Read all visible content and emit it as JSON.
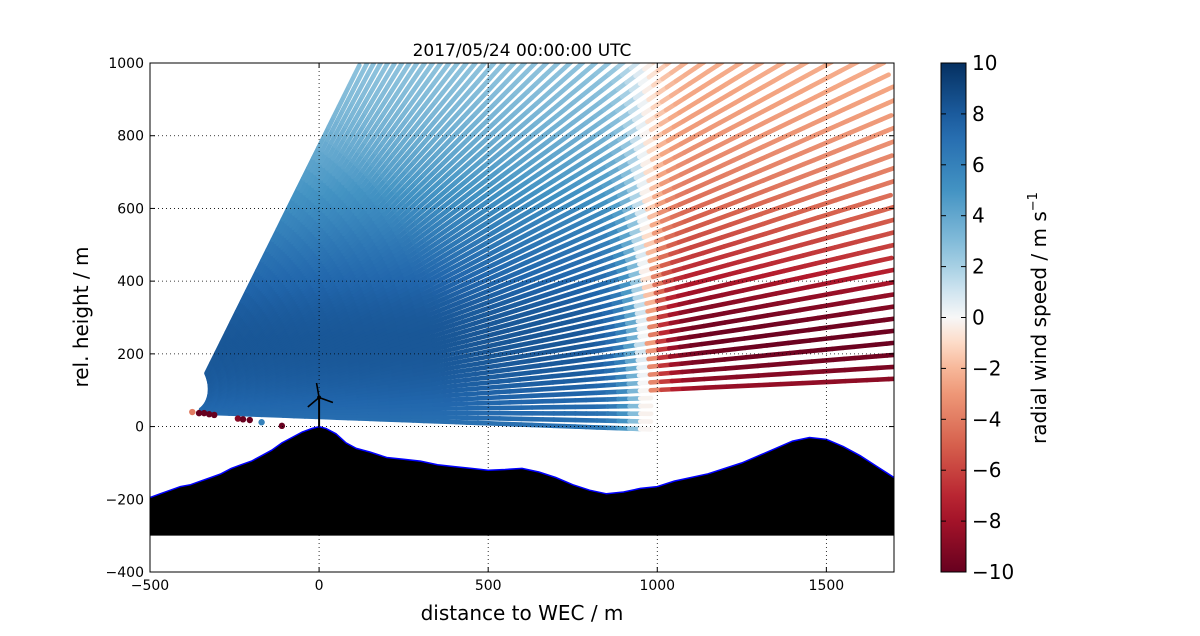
{
  "chart_data": {
    "type": "scatter",
    "title": "2017/05/24 00:00:00 UTC",
    "xlabel": "distance to WEC / m",
    "ylabel": "rel. height / m",
    "xlim": [
      -500,
      1700
    ],
    "ylim": [
      -400,
      1000
    ],
    "xticks": [
      "−500",
      "0",
      "500",
      "1000",
      "1500"
    ],
    "yticks": [
      "−400",
      "−200",
      "0",
      "200",
      "400",
      "600",
      "800",
      "1000"
    ],
    "grid": true,
    "colorbar": {
      "label": "radial wind speed / m s",
      "label_sup": "−1",
      "range": [
        -10,
        10
      ],
      "ticks": [
        "−10",
        "−8",
        "−6",
        "−4",
        "−2",
        "0",
        "2",
        "4",
        "6",
        "8",
        "10"
      ],
      "colormap": "RdBu"
    },
    "scan": {
      "origin": [
        -390,
        40
      ],
      "elevation_deg_range": [
        -2,
        62
      ],
      "max_range_m": 2300
    },
    "terrain_profile": {
      "x": [
        -500,
        -470,
        -440,
        -410,
        -380,
        -350,
        -320,
        -290,
        -260,
        -230,
        -200,
        -170,
        -140,
        -110,
        -80,
        -50,
        -20,
        0,
        20,
        50,
        80,
        110,
        150,
        200,
        250,
        300,
        350,
        400,
        450,
        500,
        550,
        600,
        650,
        700,
        750,
        800,
        850,
        900,
        950,
        1000,
        1050,
        1100,
        1150,
        1200,
        1250,
        1300,
        1350,
        1400,
        1450,
        1500,
        1550,
        1600,
        1650,
        1700
      ],
      "y": [
        -195,
        -185,
        -175,
        -165,
        -160,
        -150,
        -140,
        -130,
        -115,
        -105,
        -95,
        -80,
        -65,
        -45,
        -30,
        -15,
        -5,
        0,
        -5,
        -20,
        -45,
        -60,
        -70,
        -85,
        -90,
        -95,
        -105,
        -110,
        -115,
        -120,
        -118,
        -115,
        -125,
        -140,
        -160,
        -175,
        -185,
        -180,
        -170,
        -165,
        -150,
        -140,
        -130,
        -115,
        -100,
        -80,
        -60,
        -40,
        -30,
        -35,
        -55,
        -80,
        -110,
        -140
      ],
      "fill_bottom": -300
    },
    "turbine": {
      "x": 0,
      "hub_height": 80,
      "rotor_radius": 45
    },
    "near_ground_points": [
      {
        "x": -375,
        "y": 40,
        "value": -4
      },
      {
        "x": -355,
        "y": 37,
        "value": -10
      },
      {
        "x": -340,
        "y": 37,
        "value": -10
      },
      {
        "x": -325,
        "y": 34,
        "value": -10
      },
      {
        "x": -310,
        "y": 32,
        "value": -10
      },
      {
        "x": -240,
        "y": 22,
        "value": -9
      },
      {
        "x": -225,
        "y": 20,
        "value": -10
      },
      {
        "x": -205,
        "y": 18,
        "value": -10
      },
      {
        "x": -170,
        "y": 12,
        "value": 6
      },
      {
        "x": -110,
        "y": 2,
        "value": -10
      }
    ]
  }
}
